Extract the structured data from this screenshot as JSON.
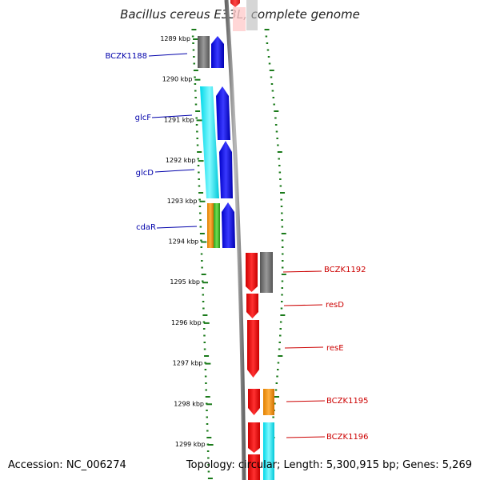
{
  "title": "Bacillus cereus E33L, complete genome",
  "accession": "Accession: NC_006274",
  "topology": "Topology: circular; Length: 5,300,915 bp; Genes: 5,269",
  "kbp_ticks": [
    "1289 kbp",
    "1290 kbp",
    "1291 kbp",
    "1292 kbp",
    "1293 kbp",
    "1294 kbp",
    "1295 kbp",
    "1296 kbp",
    "1297 kbp",
    "1298 kbp",
    "1299 kbp"
  ],
  "colors": {
    "minus_strand_label": "#0000aa",
    "plus_strand_label": "#cc0000",
    "tick": "#1a7a1a",
    "backbone": "#888888"
  },
  "genes_left": [
    {
      "name": "BCZK1188"
    },
    {
      "name": "glcF"
    },
    {
      "name": "glcD"
    },
    {
      "name": "cdaR"
    }
  ],
  "genes_right": [
    {
      "name": "BCZK1192"
    },
    {
      "name": "resD"
    },
    {
      "name": "resE"
    },
    {
      "name": "BCZK1195"
    },
    {
      "name": "BCZK1196"
    }
  ]
}
